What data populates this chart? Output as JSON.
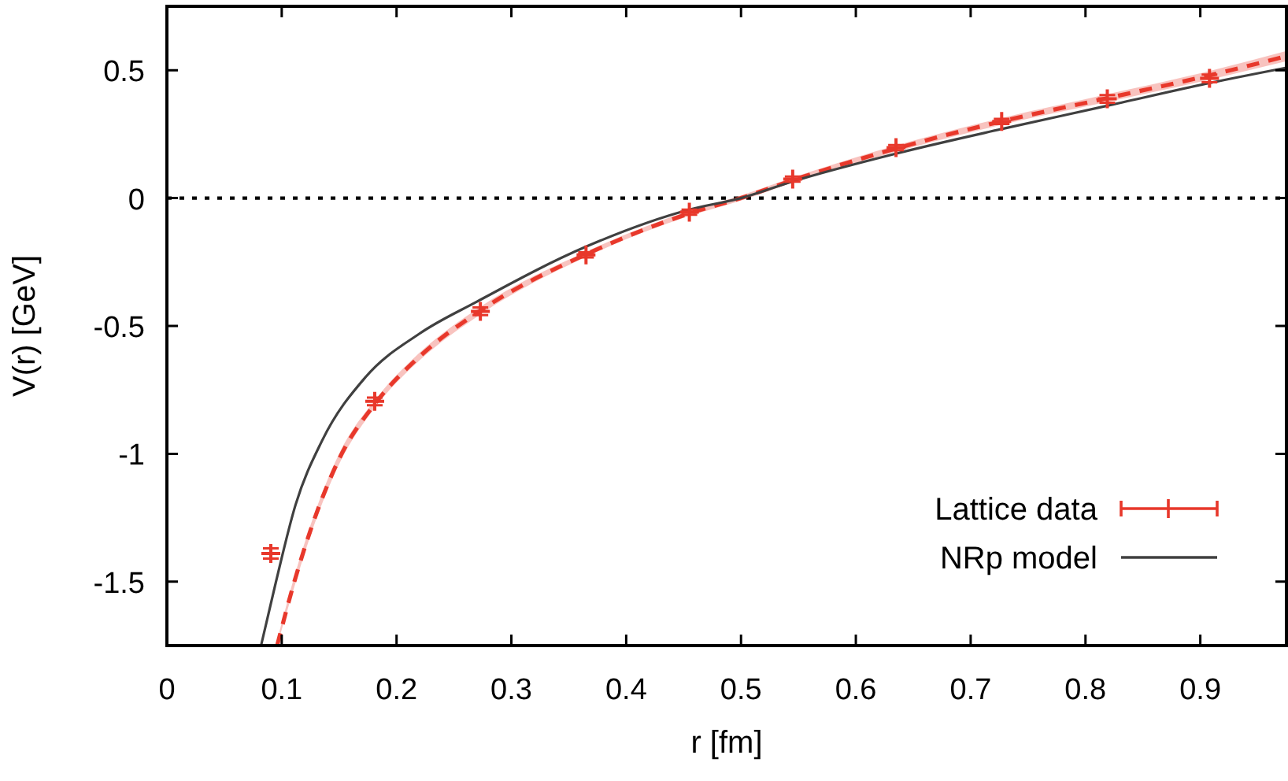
{
  "chart_data": {
    "type": "scatter",
    "xlabel": "r [fm]",
    "ylabel": "V(r) [GeV]",
    "xlim": [
      0,
      0.975
    ],
    "ylim": [
      -1.75,
      0.75
    ],
    "xticks": [
      0,
      0.1,
      0.2,
      0.3,
      0.4,
      0.5,
      0.6,
      0.7,
      0.8,
      0.9
    ],
    "yticks": [
      {
        "value": 0.5,
        "label": "0.5"
      },
      {
        "value": 0,
        "label": "0"
      },
      {
        "value": -0.5,
        "label": "-0.5"
      },
      {
        "value": -1,
        "label": "-1"
      },
      {
        "value": -1.5,
        "label": "-1.5"
      }
    ],
    "grid": false,
    "legend": "bottom right",
    "ref_lines": [
      {
        "axis": "y",
        "value": 0,
        "color": "#000000",
        "line_style": "dotted"
      }
    ],
    "series": [
      {
        "type": "line",
        "color": "#e8382b",
        "line_style": "dashed",
        "marker": "none",
        "x": [
          0.096,
          0.111,
          0.125,
          0.15,
          0.182,
          0.22,
          0.273,
          0.365,
          0.455,
          0.5,
          0.545,
          0.636,
          0.727,
          0.818,
          0.908,
          0.975
        ],
        "values": [
          -1.75,
          -1.5,
          -1.3,
          -1.02,
          -0.8,
          -0.62,
          -0.44,
          -0.22,
          -0.06,
          0,
          0.07,
          0.195,
          0.3,
          0.39,
          0.48,
          0.555
        ],
        "lower": [
          -1.75,
          -1.52,
          -1.32,
          -1.04,
          -0.815,
          -0.635,
          -0.455,
          -0.23,
          -0.07,
          -0.01,
          0.06,
          0.183,
          0.287,
          0.375,
          0.463,
          0.535
        ],
        "upper": [
          -1.73,
          -1.48,
          -1.28,
          -1.0,
          -0.785,
          -0.605,
          -0.425,
          -0.21,
          -0.05,
          0.01,
          0.08,
          0.207,
          0.313,
          0.405,
          0.497,
          0.575
        ]
      },
      {
        "name": "Lattice data",
        "color": "#e8382b",
        "marker": "cross",
        "x": [
          0.0905,
          0.181,
          0.273,
          0.365,
          0.455,
          0.545,
          0.635,
          0.727,
          0.819,
          0.908
        ],
        "values": [
          -1.39,
          -0.795,
          -0.443,
          -0.222,
          -0.055,
          0.074,
          0.197,
          0.3,
          0.388,
          0.468
        ],
        "errors": [
          0.02,
          0.015,
          0.015,
          0.01,
          0.01,
          0.01,
          0.01,
          0.01,
          0.015,
          0.015
        ]
      },
      {
        "type": "line",
        "name": "NRp model",
        "color": "#404040",
        "line_style": "solid",
        "marker": "none",
        "x": [
          0.082,
          0.095,
          0.112,
          0.135,
          0.173,
          0.22,
          0.27,
          0.365,
          0.455,
          0.5,
          0.545,
          0.636,
          0.727,
          0.818,
          0.908,
          0.975
        ],
        "values": [
          -1.75,
          -1.5,
          -1.2,
          -0.95,
          -0.7,
          -0.53,
          -0.405,
          -0.19,
          -0.045,
          0,
          0.065,
          0.175,
          0.27,
          0.36,
          0.45,
          0.51
        ]
      }
    ]
  }
}
